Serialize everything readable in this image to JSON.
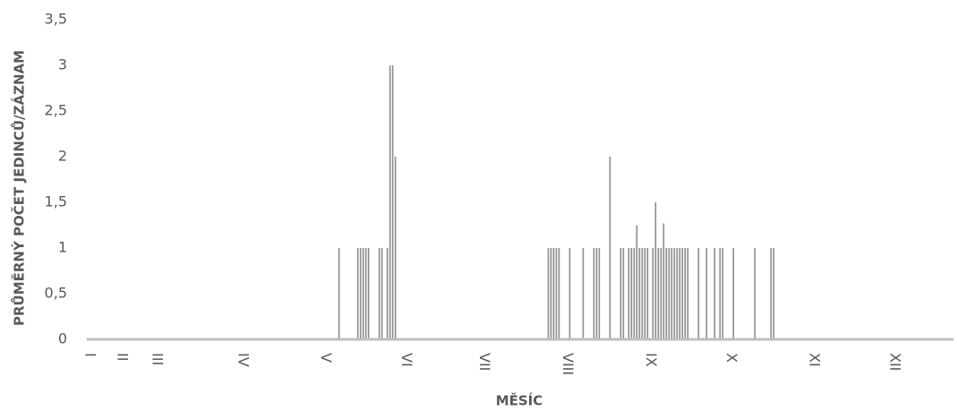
{
  "chart_data": {
    "type": "bar",
    "x_label": "MĚSÍC",
    "y_label": "PRŮMĚRNÝ POČET JEDINCŮ/ZÁZNAM",
    "color": "#8c8c8c",
    "x": [
      93,
      100,
      101,
      102,
      103,
      104,
      108,
      109,
      111,
      112,
      113,
      114,
      171,
      172,
      173,
      174,
      175,
      179,
      184,
      188,
      189,
      190,
      194,
      198,
      199,
      201,
      202,
      203,
      204,
      205,
      206,
      207,
      208,
      210,
      211,
      212,
      213,
      214,
      215,
      216,
      217,
      218,
      219,
      220,
      221,
      222,
      223,
      227,
      230,
      233,
      235,
      236,
      240,
      248,
      254,
      255
    ],
    "values": [
      1,
      1,
      1,
      1,
      1,
      1,
      1,
      1,
      1,
      3,
      3,
      2,
      1,
      1,
      1,
      1,
      1,
      1,
      1,
      1,
      1,
      1,
      2,
      1,
      1,
      1,
      1,
      1,
      1.25,
      1,
      1,
      1,
      1,
      1,
      1.5,
      1,
      1,
      1.27,
      1,
      1,
      1,
      1,
      1,
      1,
      1,
      1,
      1,
      1,
      1,
      1,
      1,
      1,
      1,
      1,
      1,
      1
    ],
    "xlim": [
      -1,
      322
    ],
    "xticks": [
      {
        "value": 0,
        "label": "I"
      },
      {
        "value": 12,
        "label": "II"
      },
      {
        "value": 25,
        "label": "III"
      },
      {
        "value": 57,
        "label": "IV"
      },
      {
        "value": 88,
        "label": "V"
      },
      {
        "value": 118,
        "label": "VI"
      },
      {
        "value": 147,
        "label": "VII"
      },
      {
        "value": 178,
        "label": "VIII"
      },
      {
        "value": 209,
        "label": "IX"
      },
      {
        "value": 239,
        "label": "X"
      },
      {
        "value": 270,
        "label": "XI"
      },
      {
        "value": 300,
        "label": "XII"
      }
    ],
    "ylim": [
      0,
      3.5
    ],
    "yticks": [
      0,
      {
        "value": 0.5,
        "label": "0,5"
      },
      1,
      {
        "value": 1.5,
        "label": "1,5"
      },
      2,
      {
        "value": 2.5,
        "label": "2,5"
      },
      3,
      {
        "value": 3.5,
        "label": "3,5"
      }
    ],
    "grid": false
  }
}
